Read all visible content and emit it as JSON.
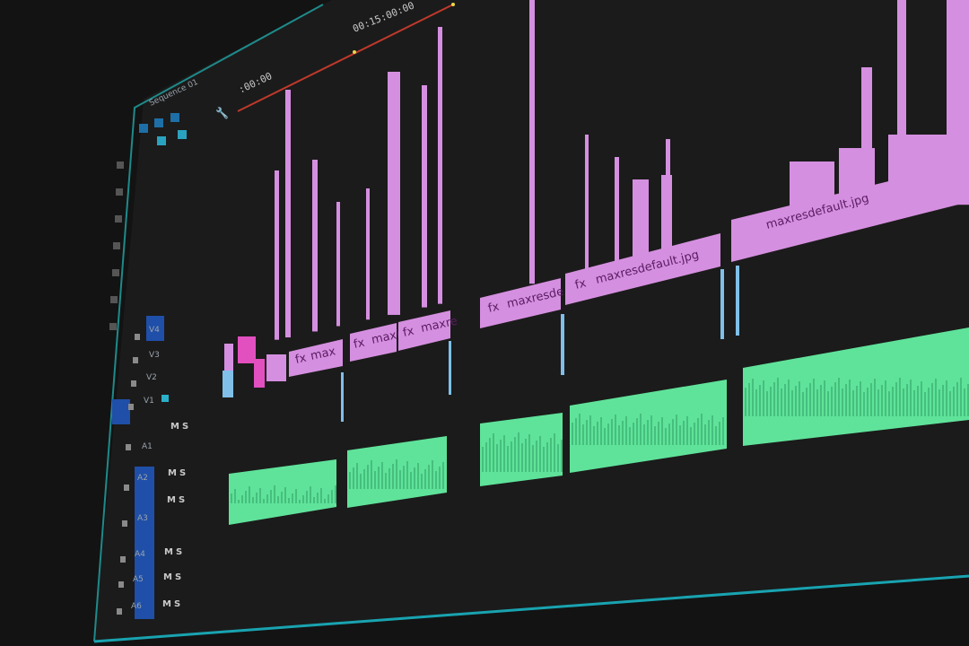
{
  "timeline": {
    "timecode_major": "00:15:00:00",
    "timecode_start": ":00:00",
    "sequence_name": "Sequence 01"
  },
  "video_clips": [
    {
      "label": "max",
      "fx": "fx"
    },
    {
      "label": "maxi",
      "fx": "fx"
    },
    {
      "label": "maxre",
      "fx": "fx"
    },
    {
      "label": "maxresde",
      "fx": "fx"
    },
    {
      "label": "maxresdefault.jpg",
      "fx": "fx"
    },
    {
      "label": "maxresdefault.jpg",
      "fx": ""
    }
  ],
  "tracks": {
    "video": [
      "V4",
      "V3",
      "V2",
      "V1"
    ],
    "audio": [
      "A1",
      "A2",
      "A3",
      "A4",
      "A5",
      "A6"
    ],
    "mute": "M",
    "solo": "S"
  },
  "colors": {
    "background": "#131313",
    "panel_border": "#1f8a8a",
    "video_clip": "#d58fe0",
    "audio_clip": "#5fe39a",
    "playhead_bar": "#c0392b",
    "track_target": "#1f4fa8"
  }
}
